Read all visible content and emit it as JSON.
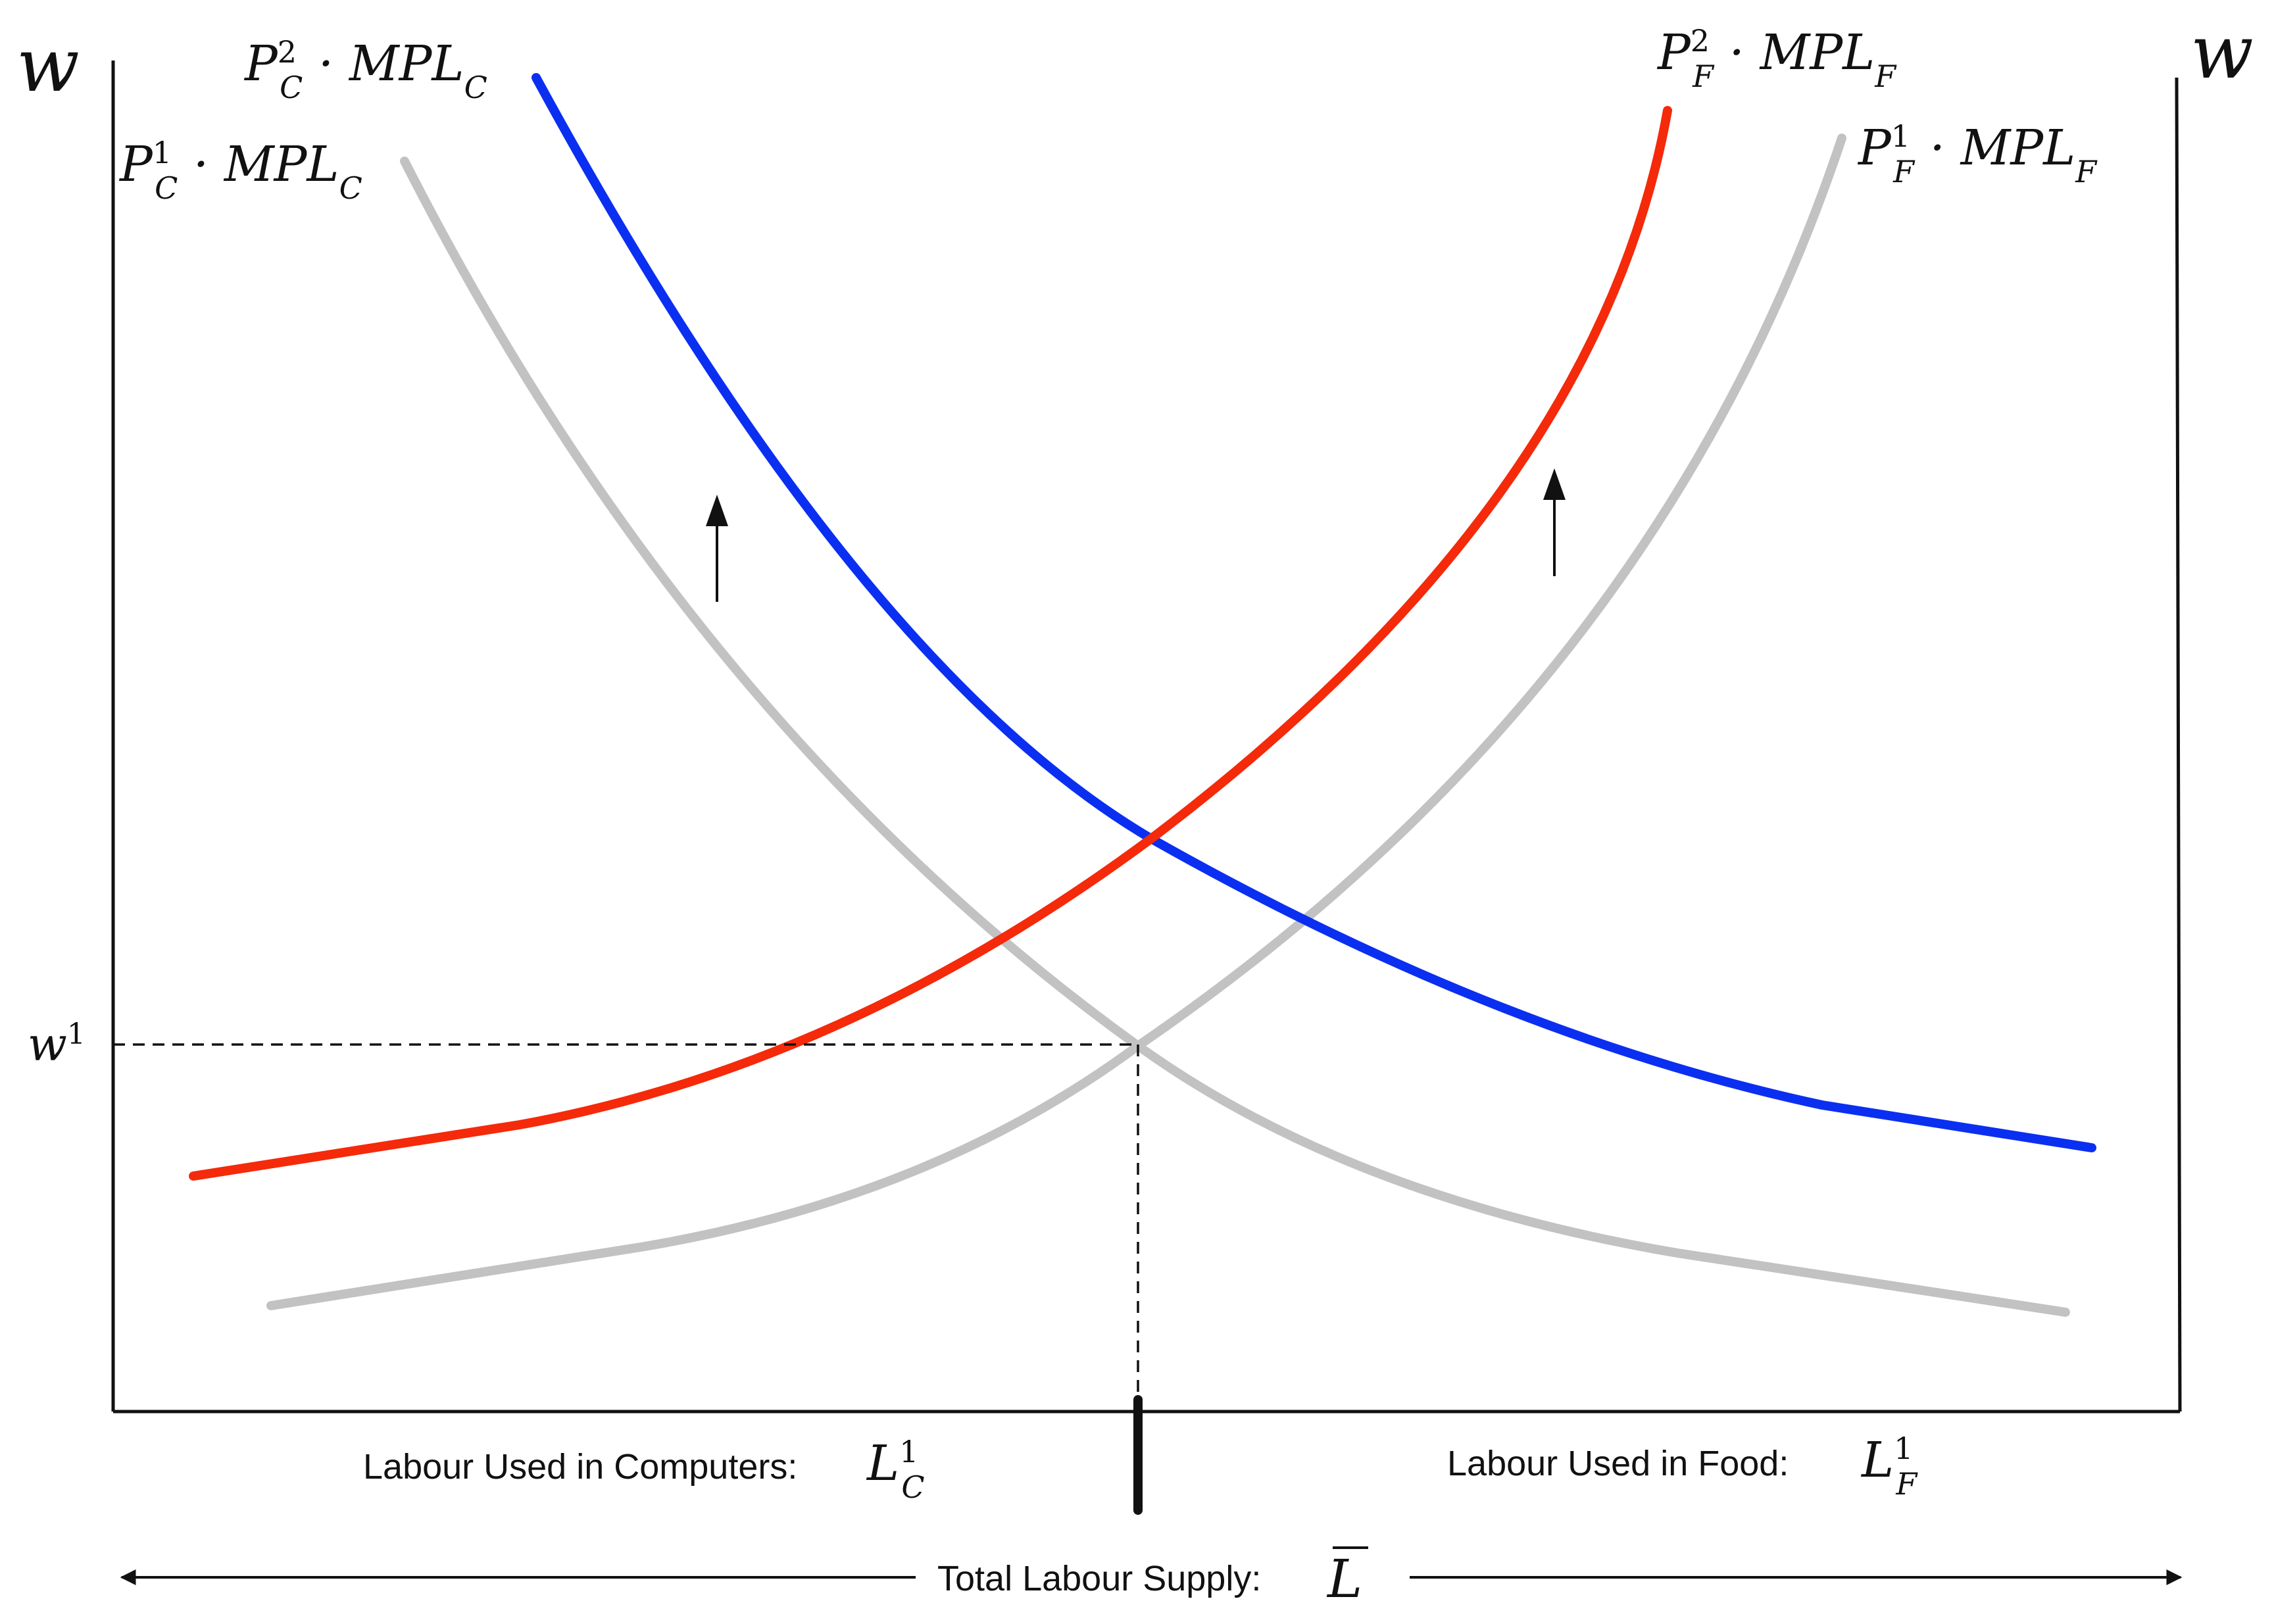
{
  "axes": {
    "left_axis_label": "w",
    "right_axis_label": "w"
  },
  "curves": {
    "computers_before": {
      "base": "P",
      "sup": "1",
      "sub": "C",
      "rest": " · MPL",
      "rest_sub": "C",
      "color": "#c2c2c2"
    },
    "computers_after": {
      "base": "P",
      "sup": "2",
      "sub": "C",
      "rest": " · MPL",
      "rest_sub": "C",
      "color": "#0b2ff0"
    },
    "food_before": {
      "base": "P",
      "sup": "1",
      "sub": "F",
      "rest": " · MPL",
      "rest_sub": "F",
      "color": "#c2c2c2"
    },
    "food_after": {
      "base": "P",
      "sup": "2",
      "sub": "F",
      "rest": " · MPL",
      "rest_sub": "F",
      "color": "#f42a0a"
    }
  },
  "equilibrium_wage": {
    "base": "w",
    "sup": "1"
  },
  "labour_computers": {
    "text": "Labour Used in Computers:",
    "base": "L",
    "sup": "1",
    "sub": "C"
  },
  "labour_food": {
    "text": "Labour Used in Food:",
    "base": "L",
    "sup": "1",
    "sub": "F"
  },
  "total_labour": {
    "text": "Total Labour Supply:",
    "symbol": "L"
  },
  "shift_arrows": [
    "up",
    "up"
  ]
}
